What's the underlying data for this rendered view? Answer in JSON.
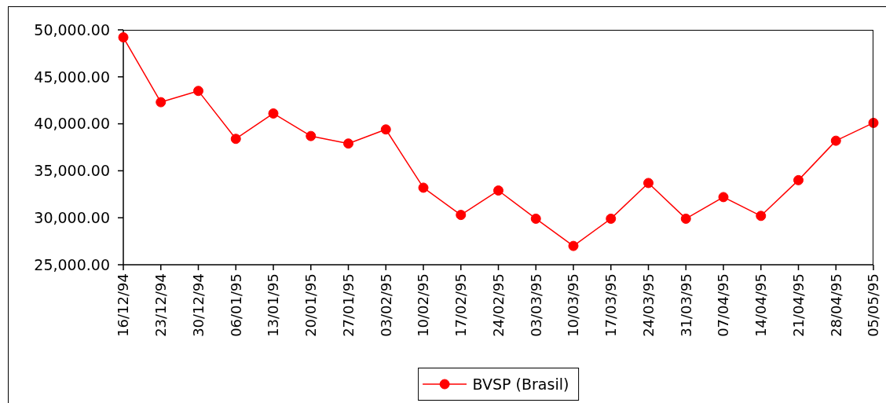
{
  "chart_data": {
    "type": "line",
    "categories": [
      "16/12/94",
      "23/12/94",
      "30/12/94",
      "06/01/95",
      "13/01/95",
      "20/01/95",
      "27/01/95",
      "03/02/95",
      "10/02/95",
      "17/02/95",
      "24/02/95",
      "03/03/95",
      "10/03/95",
      "17/03/95",
      "24/03/95",
      "31/03/95",
      "07/04/95",
      "14/04/95",
      "21/04/95",
      "28/04/95",
      "05/05/95"
    ],
    "series": [
      {
        "name": "BVSP (Brasil)",
        "color": "#ff0000",
        "values": [
          49200,
          42300,
          43500,
          38400,
          41100,
          38700,
          37900,
          39400,
          33200,
          30300,
          32900,
          29900,
          27000,
          29900,
          33700,
          29900,
          32200,
          30200,
          34000,
          38200,
          40100
        ]
      }
    ],
    "ylim": [
      25000,
      50000
    ],
    "yticks": [
      {
        "value": 25000,
        "label": "25,000.00"
      },
      {
        "value": 30000,
        "label": "30,000.00"
      },
      {
        "value": 35000,
        "label": "35,000.00"
      },
      {
        "value": 40000,
        "label": "40,000.00"
      },
      {
        "value": 45000,
        "label": "45,000.00"
      },
      {
        "value": 50000,
        "label": "50,000.00"
      }
    ],
    "grid": false,
    "legend": "bottom",
    "marker": "circle",
    "line_style": "solid"
  }
}
